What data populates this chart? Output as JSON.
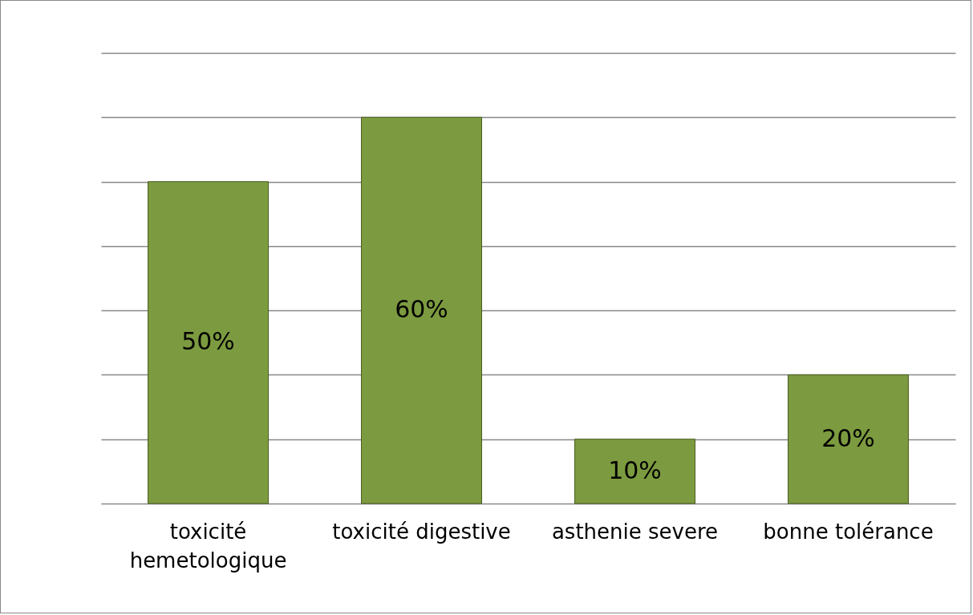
{
  "chart_data": {
    "type": "bar",
    "categories": [
      "toxicité hemetologique",
      "toxicité digestive",
      "asthenie severe",
      "bonne tolérance"
    ],
    "values": [
      50,
      60,
      10,
      20
    ],
    "value_labels": [
      "50%",
      "60%",
      "10%",
      "20%"
    ],
    "color": "#7c9a3f",
    "ylim": [
      0,
      70
    ],
    "yticks": [
      0,
      10,
      20,
      30,
      40,
      50,
      60,
      70
    ],
    "grid": "y",
    "tick_labels": "x"
  }
}
